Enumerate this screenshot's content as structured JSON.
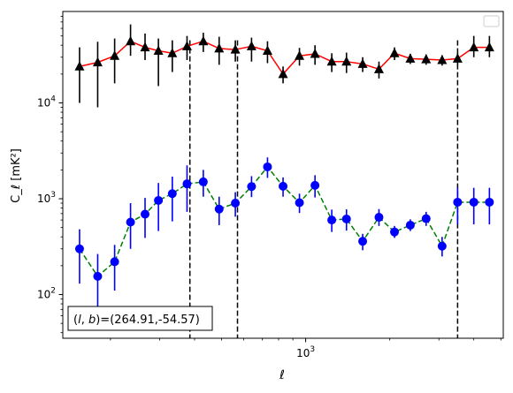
{
  "chart_data": {
    "type": "scatter",
    "xscale": "log",
    "yscale": "log",
    "xlim": [
      135,
      5100
    ],
    "ylim": [
      35,
      90000
    ],
    "xlabel": "ℓ",
    "ylabel": "C_ℓ  [mK²]",
    "x_ticks": [
      {
        "value": 1000,
        "label": "10",
        "exp": "3"
      }
    ],
    "y_ticks": [
      {
        "value": 100,
        "label": "10",
        "exp": "2"
      },
      {
        "value": 1000,
        "label": "10",
        "exp": "3"
      },
      {
        "value": 10000,
        "label": "10",
        "exp": "4"
      }
    ],
    "annotation": "(l, b)=(264.91,-54.57)",
    "annotation_parts": {
      "prefix": "(",
      "l": "l",
      "sep": ", ",
      "b": "b",
      "suffix": ")=(264.91,-54.57)"
    },
    "legend": {
      "placement": "top-right",
      "entries": []
    },
    "vlines": [
      385,
      570,
      3500
    ],
    "series": [
      {
        "marker": "triangle",
        "color": "#000000",
        "line_color": "#ff0000",
        "line_style": "solid",
        "x": [
          155,
          180,
          207,
          236,
          266,
          297,
          333,
          376,
          430,
          490,
          560,
          640,
          730,
          830,
          950,
          1080,
          1240,
          1400,
          1600,
          1830,
          2080,
          2370,
          2700,
          3080,
          3500,
          4000,
          4550
        ],
        "y": [
          24000,
          26500,
          31000,
          44000,
          38000,
          35000,
          33000,
          39000,
          44000,
          37000,
          36000,
          39000,
          35000,
          20000,
          31000,
          32500,
          27000,
          27000,
          25500,
          22500,
          33000,
          29000,
          28500,
          28000,
          29000,
          38000,
          38000
        ],
        "err_low": [
          14000,
          17500,
          15000,
          13000,
          10000,
          20000,
          12000,
          11000,
          10000,
          12000,
          9000,
          12000,
          9000,
          4000,
          6500,
          7500,
          6000,
          6500,
          4500,
          4500,
          5000,
          3500,
          3500,
          3500,
          4000,
          8000,
          8000
        ],
        "err_high": [
          14000,
          17000,
          16000,
          22000,
          15000,
          12000,
          12000,
          11000,
          10000,
          12000,
          9000,
          9000,
          9000,
          4000,
          6500,
          7500,
          6000,
          6500,
          4500,
          4500,
          5000,
          3500,
          3500,
          3500,
          4000,
          12000,
          12000
        ]
      },
      {
        "marker": "circle",
        "color": "#0000ff",
        "line_color": "#008000",
        "line_style": "dashed",
        "x": [
          155,
          180,
          207,
          236,
          266,
          297,
          333,
          376,
          430,
          490,
          560,
          640,
          730,
          830,
          950,
          1080,
          1240,
          1400,
          1600,
          1830,
          2080,
          2370,
          2700,
          3080,
          3500,
          4000,
          4550
        ],
        "y": [
          300,
          155,
          220,
          570,
          690,
          960,
          1130,
          1430,
          1500,
          780,
          900,
          1340,
          2150,
          1350,
          910,
          1380,
          600,
          615,
          360,
          640,
          450,
          530,
          620,
          320,
          920,
          920,
          920
        ],
        "err_low": [
          170,
          90,
          110,
          270,
          300,
          500,
          550,
          700,
          450,
          250,
          250,
          300,
          500,
          300,
          200,
          350,
          150,
          150,
          70,
          120,
          60,
          70,
          100,
          70,
          380,
          380,
          380
        ],
        "err_high": [
          180,
          110,
          110,
          330,
          330,
          500,
          570,
          800,
          500,
          270,
          270,
          380,
          550,
          320,
          220,
          380,
          170,
          160,
          70,
          140,
          70,
          80,
          110,
          80,
          380,
          380,
          380
        ]
      }
    ]
  }
}
